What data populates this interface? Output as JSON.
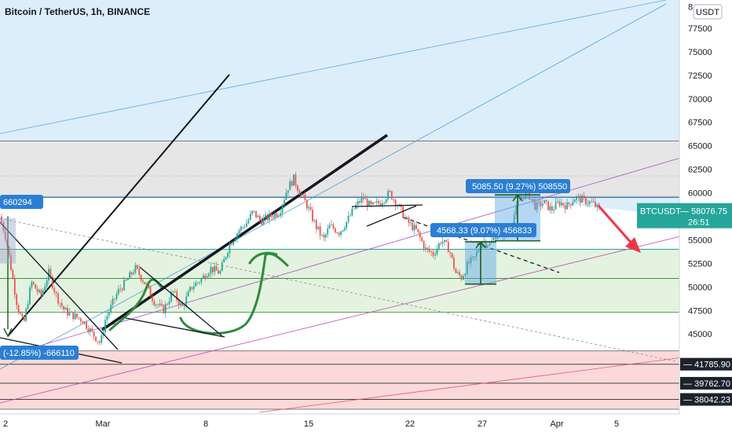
{
  "chart_data": {
    "type": "candlestick",
    "title": "Bitcoin / TetherUS, 1h, BINANCE",
    "currency_button": "USDT",
    "y_ticks": [
      "77500",
      "75000",
      "72500",
      "70000",
      "67500",
      "65000",
      "62500",
      "60000",
      "57500",
      "55000",
      "52500",
      "50000",
      "47500",
      "45000"
    ],
    "y_tick_values": [
      77500,
      75000,
      72500,
      70000,
      67500,
      65000,
      62500,
      60000,
      57500,
      55000,
      52500,
      50000,
      47500,
      45000
    ],
    "y_top_partial": "8",
    "ylim": [
      36500,
      80500
    ],
    "x_ticks": [
      "2",
      "Mar",
      "8",
      "15",
      "22",
      "27",
      "Apr",
      "5"
    ],
    "last_price": {
      "symbol": "BTCUSDT",
      "value": "58076.75",
      "value_num": 58076.75,
      "countdown": "26:51",
      "color": "#26a69a"
    },
    "price_tags": [
      {
        "value": "41785.90",
        "value_num": 41785.9
      },
      {
        "value": "39762.70",
        "value_num": 39762.7
      },
      {
        "value": "38042.23",
        "value_num": 38042.23
      }
    ],
    "measure_labels": [
      {
        "text": "5085.50 (9.27%) 508550"
      },
      {
        "text": "4568.33 (9.07%) 456833"
      },
      {
        "text": "660294"
      },
      {
        "text": "(-12.85%) -666110"
      }
    ],
    "zones": [
      {
        "name": "resistance-zone",
        "from": 59500,
        "to": 65500,
        "color": "#e6e6e6"
      },
      {
        "name": "support-zone",
        "from": 47300,
        "to": 54000,
        "color": "#e3f3df"
      },
      {
        "name": "lower-zone",
        "from": 37000,
        "to": 43200,
        "color": "#fbd9d9"
      }
    ],
    "colors": {
      "up": "#26a69a",
      "down": "#ef5350",
      "measure": "#2a7fd4",
      "annotation": "#2e8b3d",
      "arrow": "#f23645"
    }
  }
}
